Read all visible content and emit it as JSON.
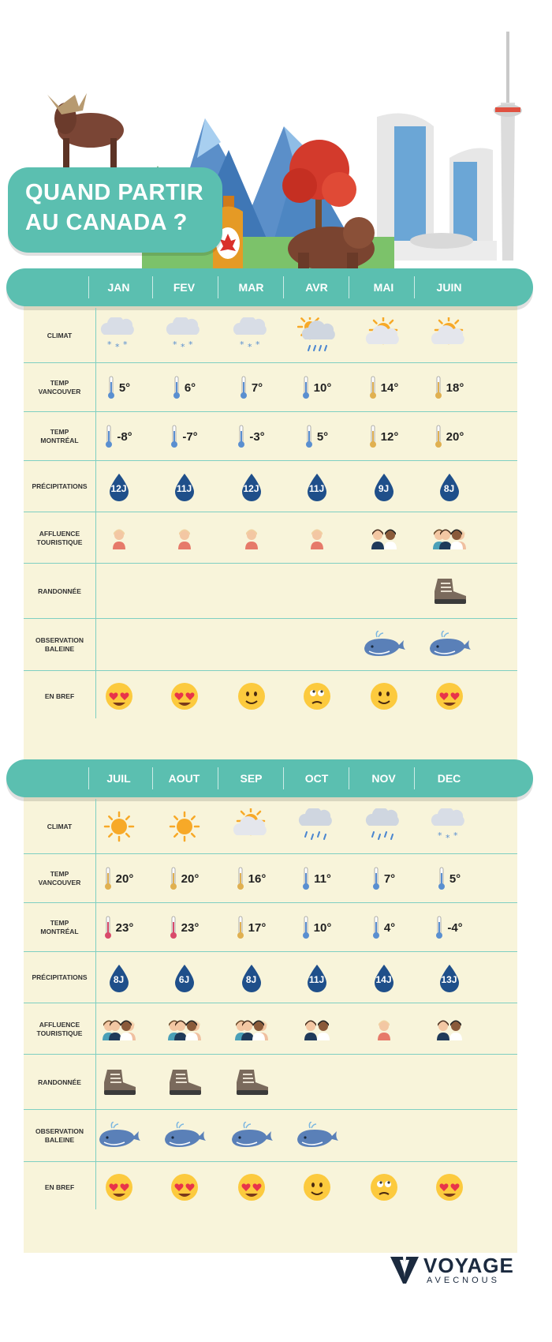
{
  "title": {
    "line1": "QUAND PARTIR",
    "line2": "AU CANADA ?"
  },
  "row_labels": {
    "climat": [
      "CLIMAT"
    ],
    "temp_vancouver": [
      "TEMP",
      "VANCOUVER"
    ],
    "temp_montreal": [
      "TEMP",
      "MONTRÉAL"
    ],
    "precipitations": [
      "PRÉCIPITATIONS"
    ],
    "affluence": [
      "AFFLUENCE",
      "TOURISTIQUE"
    ],
    "randonnee": [
      "RANDONNÉE"
    ],
    "baleine": [
      "OBSERVATION",
      "BALEINE"
    ],
    "bref": [
      "EN BREF"
    ]
  },
  "tables": [
    {
      "months": [
        "JAN",
        "FEV",
        "MAR",
        "AVR",
        "MAI",
        "JUIN"
      ],
      "climat": [
        "snow",
        "snow",
        "snow",
        "sun-rain",
        "sun-cloud",
        "sun-cloud"
      ],
      "temp_vancouver": [
        "5°",
        "6°",
        "7°",
        "10°",
        "14°",
        "18°"
      ],
      "temp_montreal": [
        "-8°",
        "-7°",
        "-3°",
        "5°",
        "12°",
        "20°"
      ],
      "precipitations": [
        "12J",
        "11J",
        "12J",
        "11J",
        "9J",
        "8J"
      ],
      "affluence": [
        1,
        1,
        1,
        1,
        2,
        3
      ],
      "randonnee": [
        false,
        false,
        false,
        false,
        false,
        true
      ],
      "baleine": [
        false,
        false,
        false,
        false,
        true,
        true
      ],
      "bref": [
        "heart-eyes",
        "heart-eyes",
        "smile",
        "meh",
        "smile",
        "heart-eyes"
      ]
    },
    {
      "months": [
        "JUIL",
        "AOUT",
        "SEP",
        "OCT",
        "NOV",
        "DEC"
      ],
      "climat": [
        "sun",
        "sun",
        "sun-cloud",
        "rain",
        "rain",
        "snow"
      ],
      "temp_vancouver": [
        "20°",
        "20°",
        "16°",
        "11°",
        "7°",
        "5°"
      ],
      "temp_montreal": [
        "23°",
        "23°",
        "17°",
        "10°",
        "4°",
        "-4°"
      ],
      "precipitations": [
        "8J",
        "6J",
        "8J",
        "11J",
        "14J",
        "13J"
      ],
      "affluence": [
        3,
        3,
        3,
        2,
        1,
        2
      ],
      "randonnee": [
        true,
        true,
        true,
        false,
        false,
        false
      ],
      "baleine": [
        true,
        true,
        true,
        true,
        false,
        false
      ],
      "bref": [
        "heart-eyes",
        "heart-eyes",
        "heart-eyes",
        "smile",
        "meh",
        "heart-eyes"
      ]
    }
  ],
  "logo": {
    "line1": "VOYAGE",
    "line2": "AVECNOUS"
  },
  "colors": {
    "teal": "#5bbfb0",
    "panel": "#f8f4da",
    "drop": "#1f4f8a",
    "navy": "#1b2a3f"
  }
}
